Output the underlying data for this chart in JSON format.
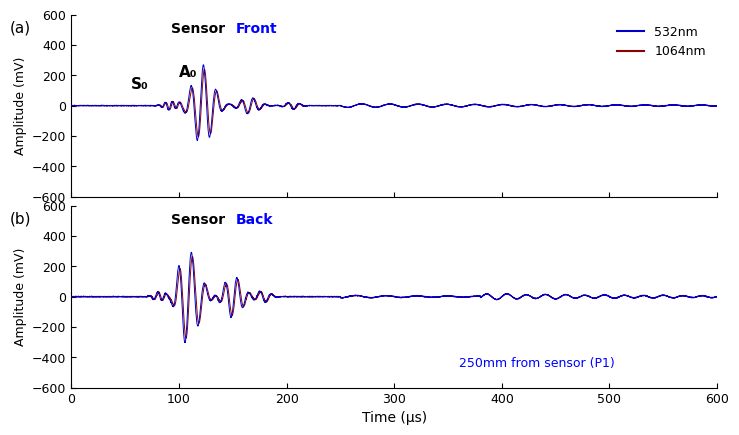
{
  "title_a_black": "Sensor ",
  "title_a_blue": "Front",
  "title_b_black": "Sensor ",
  "title_b_blue": "Back",
  "xlabel": "Time (μs)",
  "ylabel": "Amplitude (mV)",
  "xlim": [
    0,
    600
  ],
  "ylim": [
    -600,
    600
  ],
  "yticks": [
    -600,
    -400,
    -200,
    0,
    200,
    400,
    600
  ],
  "xticks": [
    0,
    100,
    200,
    300,
    400,
    500,
    600
  ],
  "color_532": "#0000CC",
  "color_1064": "#8B0000",
  "legend_532": "532nm",
  "legend_1064": "1064nm",
  "annotation_S0": "S₀",
  "annotation_A0": "A₀",
  "note_b": "250mm from sensor (P1)",
  "label_a": "(a)",
  "label_b": "(b)"
}
